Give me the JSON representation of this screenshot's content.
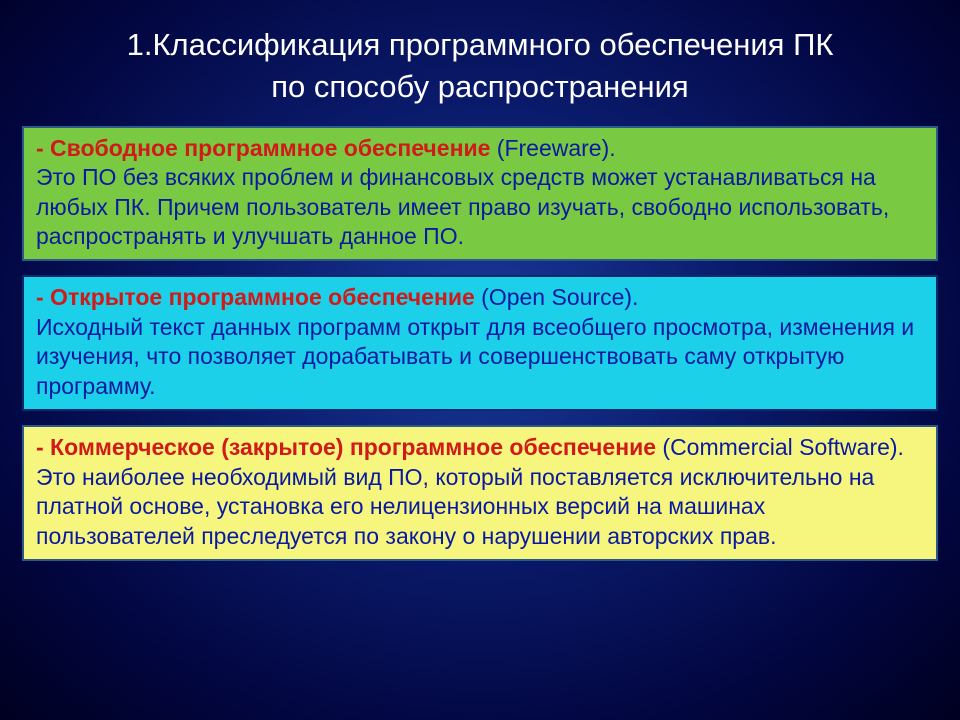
{
  "title": {
    "line1": "1.Классификация программного обеспечения ПК",
    "line2": "по способу распространения",
    "color": "#ffffff",
    "fontsize": 31
  },
  "boxes": [
    {
      "bg": "#7ac943",
      "border": "#2a5a8a",
      "heading_color": "#d11a1a",
      "body_color": "#0a1aa0",
      "heading": "- Свободное программное обеспечение",
      "heading_suffix": " (Freeware).",
      "body": "Это ПО без всяких проблем и финансовых средств может устанавливаться на любых ПК. Причем пользователь имеет право изучать, свободно использовать, распространять и улучшать данное ПО.",
      "fontsize": 23
    },
    {
      "bg": "#1bd0e8",
      "border": "#0b2a6a",
      "heading_color": "#d11a1a",
      "body_color": "#0a1aa0",
      "heading": "- Открытое программное обеспечение",
      "heading_suffix": " (Open Source).",
      "body": "Исходный текст данных программ открыт для всеобщего просмотра, изменения и изучения, что позволяет дорабатывать и совершенствовать саму открытую программу.",
      "fontsize": 23
    },
    {
      "bg": "#f6f67e",
      "border": "#2a5a8a",
      "heading_color": "#d11a1a",
      "body_color": "#0a1aa0",
      "heading": "- Коммерческое (закрытое) программное обеспечение",
      "heading_suffix": " (Commercial Software).",
      "body": "Это наиболее необходимый вид ПО, который поставляется исключительно на платной основе,  установка его нелицензионных версий на машинах пользователей преследуется по закону о нарушении авторских прав.",
      "fontsize": 23
    }
  ]
}
